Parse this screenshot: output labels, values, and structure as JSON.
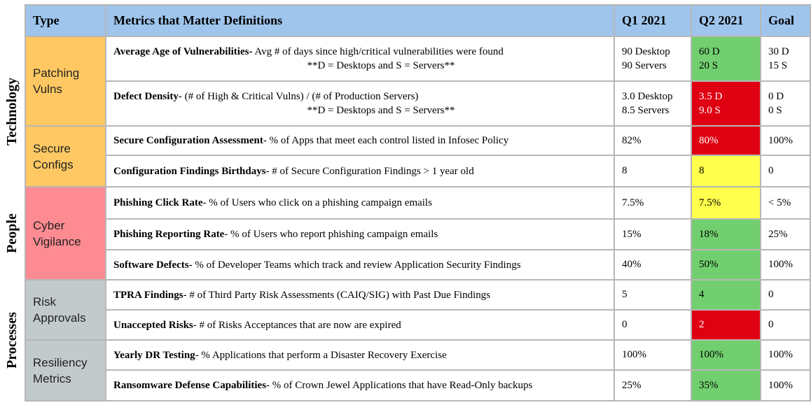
{
  "side_labels": [
    "Technology",
    "People",
    "Processes"
  ],
  "header": {
    "type": "Type",
    "metric": "Metrics that Matter Definitions",
    "q1": "Q1 2021",
    "q2": "Q2 2021",
    "goal": "Goal"
  },
  "groups": [
    {
      "label": "Patching Vulns",
      "color": "#ffc862"
    },
    {
      "label": "Secure Configs",
      "color": "#ffc862"
    },
    {
      "label": "Cyber Vigilance",
      "color": "#ff8b92"
    },
    {
      "label": "Risk Approvals",
      "color": "#c3cacb"
    },
    {
      "label": "Resiliency Metrics",
      "color": "#c3cacb"
    }
  ],
  "status_colors": {
    "green": "#72cf6f",
    "red": "#df0012",
    "yellow": "#ffff4d"
  },
  "rows": [
    {
      "name": "Average Age of Vulnerabilities-",
      "desc": " Avg # of days since high/critical vulnerabilities were found",
      "note": "**D = Desktops  and S = Servers**",
      "q1": [
        "90 Desktop",
        "90 Servers"
      ],
      "q2": [
        "60 D",
        "20 S"
      ],
      "goal": [
        "30 D",
        "15 S"
      ],
      "status": "green"
    },
    {
      "name": "Defect Density",
      "desc": "- (# of High & Critical Vulns) / (# of Production Servers)",
      "note": "**D = Desktops  and S = Servers**",
      "q1": [
        "3.0 Desktop",
        "8.5 Servers"
      ],
      "q2": [
        "3.5 D",
        "9.0 S"
      ],
      "goal": [
        "0 D",
        "0 S"
      ],
      "status": "red"
    },
    {
      "name": "Secure Configuration Assessment",
      "desc": "- % of Apps that meet each control listed in Infosec Policy",
      "q1": "82%",
      "q2": "80%",
      "goal": "100%",
      "status": "red"
    },
    {
      "name": "Configuration Findings Birthdays",
      "desc": "- # of Secure Configuration Findings > 1 year old",
      "q1": "8",
      "q2": "8",
      "goal": "0",
      "status": "yellow"
    },
    {
      "name": "Phishing Click Rate",
      "desc": "- % of Users who click on a phishing campaign emails",
      "q1": "7.5%",
      "q2": "7.5%",
      "goal": "< 5%",
      "status": "yellow"
    },
    {
      "name": "Phishing Reporting Rate",
      "desc": "- % of Users who report phishing campaign emails",
      "q1": "15%",
      "q2": "18%",
      "goal": "25%",
      "status": "green"
    },
    {
      "name": "Software Defects",
      "desc": "- % of Developer Teams which track and review Application Security Findings",
      "q1": "40%",
      "q2": "50%",
      "goal": "100%",
      "status": "green"
    },
    {
      "name": "TPRA Findings",
      "desc": "- # of Third Party Risk Assessments (CAIQ/SIG) with Past Due Findings",
      "q1": "5",
      "q2": "4",
      "goal": "0",
      "status": "green"
    },
    {
      "name": "Unaccepted Risks",
      "desc": "- # of Risks Acceptances that are now are expired",
      "q1": "0",
      "q2": "2",
      "goal": "0",
      "status": "red"
    },
    {
      "name": "Yearly DR Testing",
      "desc": "- % Applications that perform a Disaster Recovery Exercise",
      "q1": "100%",
      "q2": "100%",
      "goal": "100%",
      "status": "green"
    },
    {
      "name": "Ransomware Defense Capabilities",
      "desc": "- % of Crown Jewel Applications that have Read-Only backups",
      "q1": "25%",
      "q2": "35%",
      "goal": "100%",
      "status": "green"
    }
  ]
}
